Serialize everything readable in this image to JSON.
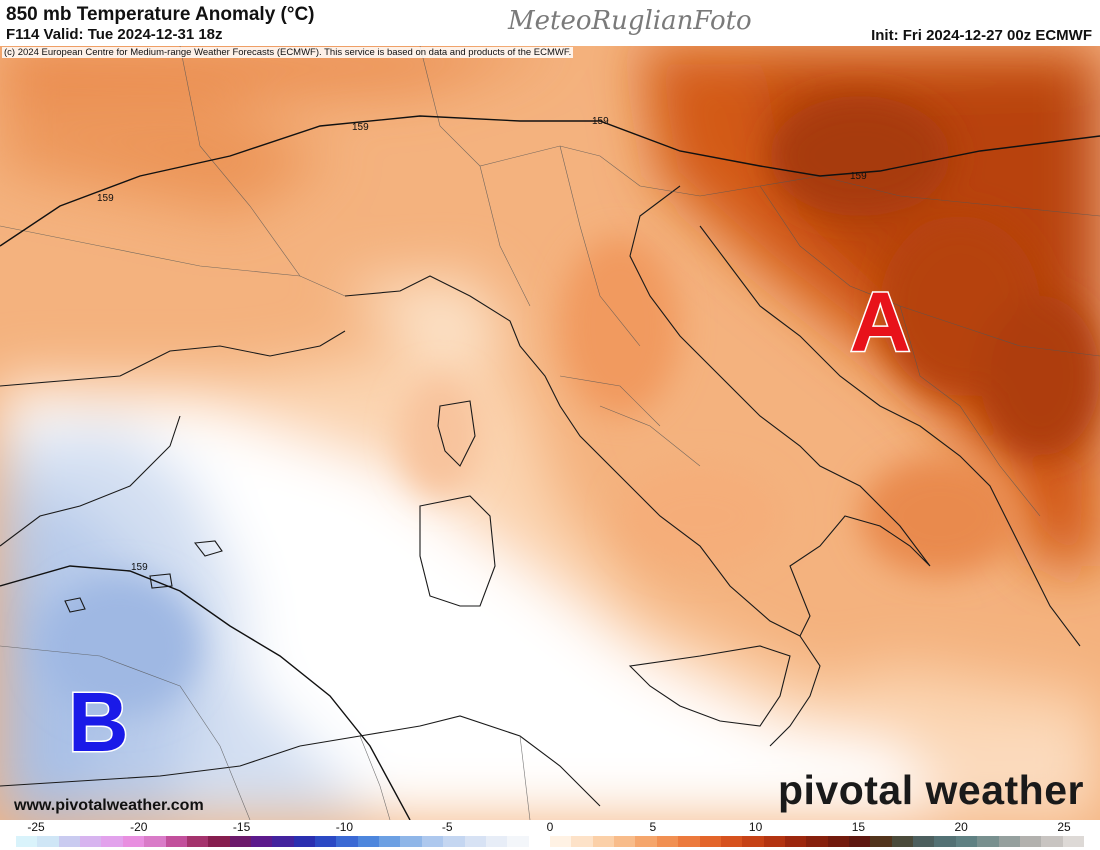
{
  "header": {
    "title": "850 mb Temperature Anomaly (°C)",
    "valid": "F114 Valid: Tue 2024-12-31 18z",
    "init": "Init: Fri 2024-12-27 00z ECMWF",
    "logo_text": "MeteoRuglianFoto"
  },
  "map": {
    "copyright": "(c) 2024 European Centre for Medium-range Weather Forecasts (ECMWF). This service is based on data and products of the ECMWF.",
    "high_marker": "A",
    "low_marker": "B",
    "contour_labels": [
      "159",
      "159",
      "159",
      "159",
      "159"
    ],
    "colors": {
      "marker_high": "#e8121a",
      "marker_low": "#1a1ae8",
      "anomaly_warm_strong": "#c9520f",
      "anomaly_warm": "#f0a268",
      "anomaly_mild": "#fbd7b6",
      "anomaly_cold": "#c4d3ec"
    }
  },
  "footer": {
    "website": "www.pivotalweather.com",
    "brand": "pivotal weather"
  },
  "colorbar": {
    "ticks": [
      "-25",
      "-20",
      "-15",
      "-10",
      "-5",
      "0",
      "5",
      "10",
      "15",
      "20",
      "25"
    ],
    "colors": [
      "#d9f3fb",
      "#cfe6f6",
      "#c9cbf0",
      "#d7b4ef",
      "#e2a2ec",
      "#e88fe0",
      "#d97bc8",
      "#c2509c",
      "#a4336d",
      "#861e4f",
      "#6c1a6b",
      "#5c1a8c",
      "#43239e",
      "#2a2fb0",
      "#2b49c4",
      "#3a69d4",
      "#4d86dd",
      "#6ca0e3",
      "#8fb6e8",
      "#adc8ee",
      "#c4d6f1",
      "#d7e2f4",
      "#e7edf7",
      "#f3f6fa",
      "#ffffff",
      "#fff2e4",
      "#fde2c8",
      "#fbd0a8",
      "#f8bc8a",
      "#f5a66c",
      "#f19052",
      "#ec7a3d",
      "#e3652a",
      "#d6521e",
      "#c64216",
      "#b33411",
      "#9c270e",
      "#86200d",
      "#721a0d",
      "#5e170f",
      "#52341c",
      "#4a4a3a",
      "#4c5f5e",
      "#537174",
      "#5f8183",
      "#78908f",
      "#95a09e",
      "#b2b1ae",
      "#c8c4c1",
      "#ddd9d6"
    ]
  }
}
